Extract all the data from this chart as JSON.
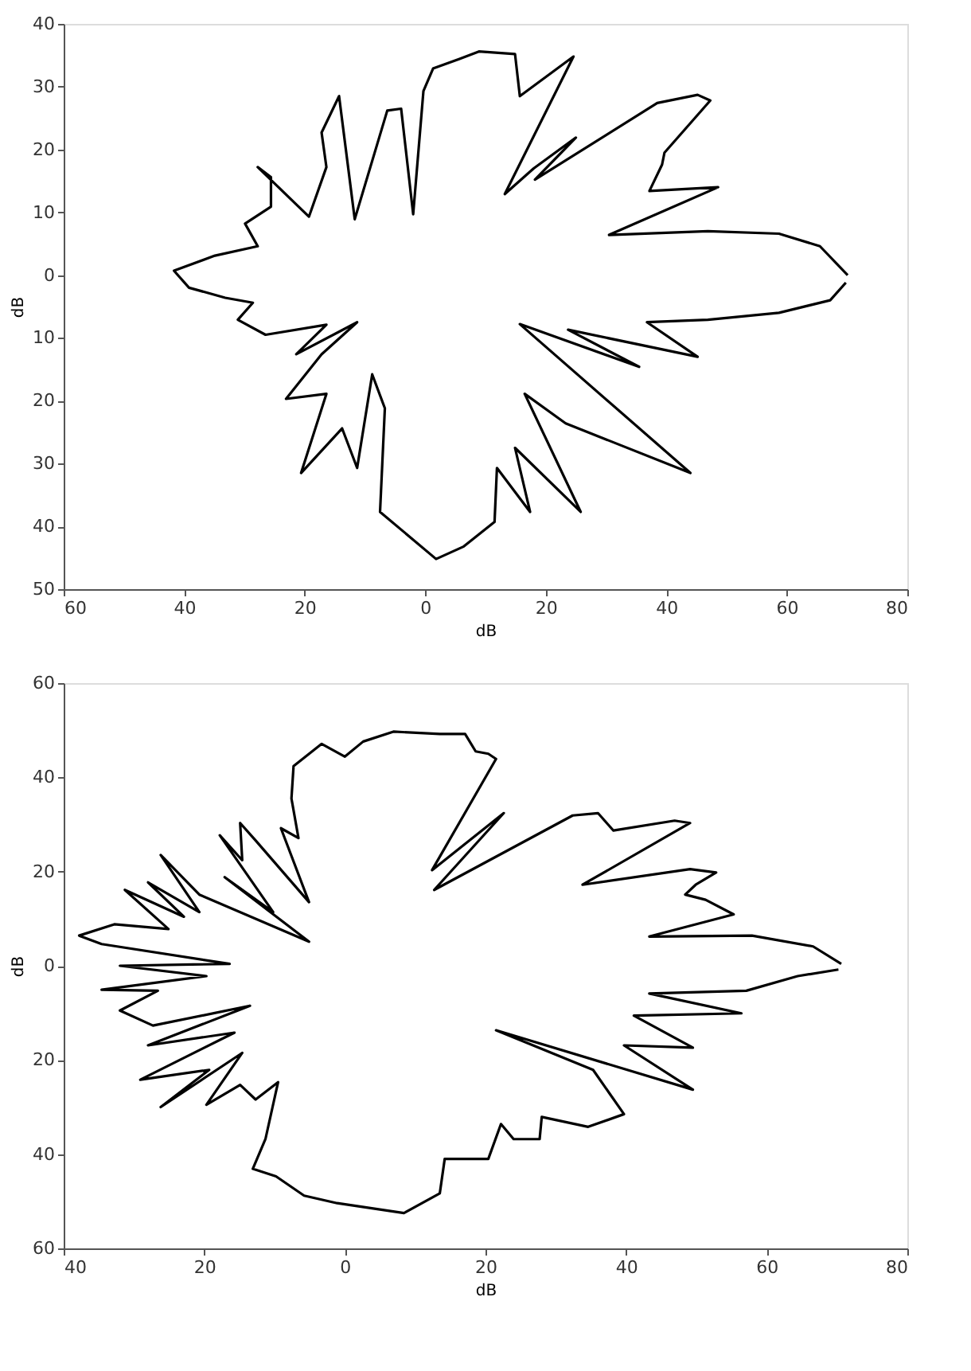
{
  "chart_data": [
    {
      "type": "line",
      "xlabel": "dB",
      "ylabel": "dB",
      "xlim": [
        -60,
        80
      ],
      "ylim": [
        -50,
        40
      ],
      "xticks": [
        {
          "value": -60,
          "label": "60"
        },
        {
          "value": -40,
          "label": "40"
        },
        {
          "value": -20,
          "label": "20"
        },
        0,
        20,
        40,
        60,
        80
      ],
      "yticks": [
        {
          "value": -50,
          "label": "50"
        },
        {
          "value": -40,
          "label": "40"
        },
        {
          "value": -30,
          "label": "30"
        },
        {
          "value": -20,
          "label": "20"
        },
        {
          "value": -10,
          "label": "10"
        },
        0,
        10,
        20,
        30,
        40
      ],
      "series": [
        {
          "color": "#000000",
          "x": [
            70.1,
            65.5,
            58.7,
            46.9,
            30.5,
            48.6,
            37.2,
            39.3,
            39.7,
            47.3,
            45.2,
            38.5,
            18.2,
            25.0,
            18.0,
            13.2,
            24.6,
            15.7,
            14.9,
            8.9,
            5.6,
            1.3,
            -0.3,
            -2.0,
            -4.0,
            -6.3,
            -11.7,
            -14.3,
            -17.2,
            -16.4,
            -19.3,
            -27.8,
            -25.6,
            -25.6,
            -29.9,
            -27.8,
            -34.9,
            -41.7,
            -39.2,
            -33.2,
            -28.6,
            -31.1,
            -26.5,
            -16.4,
            -21.4,
            -11.3,
            -17.2,
            -23.1,
            -16.4,
            -20.6,
            -13.8,
            -11.3,
            -8.8,
            -6.7,
            -7.5,
            1.8,
            6.4,
            11.5,
            11.9,
            17.4,
            14.9,
            25.8,
            16.5,
            23.3,
            44.0,
            15.7,
            35.5,
            23.7,
            45.2,
            36.8,
            46.9,
            58.7,
            67.2,
            69.8
          ],
          "values": [
            0,
            4.6,
            6.6,
            7.0,
            6.4,
            14.0,
            13.4,
            17.6,
            19.5,
            27.8,
            28.7,
            27.4,
            15.2,
            21.9,
            17.0,
            12.9,
            34.8,
            28.5,
            35.2,
            35.6,
            34.4,
            32.9,
            29.3,
            9.7,
            26.5,
            26.2,
            8.9,
            28.5,
            22.7,
            17.2,
            9.3,
            17.2,
            15.6,
            10.9,
            8.2,
            4.6,
            3.1,
            0.7,
            -2.0,
            -3.6,
            -4.4,
            -7.1,
            -9.5,
            -7.9,
            -12.6,
            -7.5,
            -12.6,
            -19.7,
            -18.9,
            -31.5,
            -24.4,
            -30.7,
            -15.8,
            -21.2,
            -37.7,
            -45.2,
            -43.2,
            -39.3,
            -30.7,
            -37.7,
            -27.5,
            -37.7,
            -18.9,
            -23.6,
            -31.5,
            -7.8,
            -14.6,
            -8.7,
            -13.0,
            -7.5,
            -7.1,
            -6.0,
            -4.0,
            -1.2
          ]
        }
      ]
    },
    {
      "type": "line",
      "xlabel": "dB",
      "ylabel": "dB",
      "xlim": [
        -40,
        80
      ],
      "ylim": [
        -60,
        60
      ],
      "xticks": [
        {
          "value": -40,
          "label": "40"
        },
        {
          "value": -20,
          "label": "20"
        },
        0,
        20,
        40,
        60,
        80
      ],
      "yticks": [
        {
          "value": -60,
          "label": "60"
        },
        {
          "value": -40,
          "label": "40"
        },
        {
          "value": -20,
          "label": "20"
        },
        0,
        20,
        40,
        60
      ],
      "series": [
        {
          "color": "#000000",
          "x": [
            70.6,
            66.6,
            57.9,
            43.3,
            55.3,
            51.3,
            48.4,
            49.9,
            52.8,
            49.1,
            33.8,
            49.1,
            46.9,
            38.2,
            36.0,
            32.4,
            12.7,
            22.6,
            12.4,
            21.5,
            20.4,
            18.6,
            17.1,
            13.5,
            6.9,
            2.6,
            0,
            -3.3,
            -7.3,
            -7.6,
            -6.6,
            -9.1,
            -5.1,
            -12.7,
            -14.9,
            -14.6,
            -17.8,
            -10.2,
            -17.1,
            -5.1,
            -20.7,
            -26.2,
            -20.7,
            -28.0,
            -22.9,
            -31.3,
            -25.1,
            -32.8,
            -37.8,
            -34.6,
            -16.4,
            -32.0,
            -19.7,
            -34.6,
            -26.6,
            -32.0,
            -27.3,
            -13.5,
            -28.0,
            -15.7,
            -29.1,
            -19.3,
            -26.2,
            -14.6,
            -19.7,
            -14.9,
            -12.7,
            -9.5,
            -11.3,
            -13.1,
            -9.8,
            -5.8,
            -1.1,
            8.4,
            13.5,
            14.2,
            20.4,
            22.2,
            24.0,
            27.7,
            28.0,
            34.6,
            39.7,
            35.3,
            21.5,
            49.5,
            39.7,
            49.5,
            41.1,
            56.4,
            43.3,
            57.1,
            64.4,
            70.2
          ],
          "values": [
            0.4,
            4.1,
            6.4,
            6.2,
            10.9,
            14.0,
            15.1,
            17.2,
            19.8,
            20.5,
            17.2,
            30.3,
            30.8,
            28.7,
            32.4,
            31.9,
            16.1,
            32.4,
            20.3,
            43.9,
            45.0,
            45.5,
            49.2,
            49.2,
            49.7,
            47.6,
            44.4,
            47.1,
            42.4,
            35.5,
            27.1,
            29.2,
            13.5,
            26.6,
            30.3,
            22.4,
            27.7,
            11.4,
            18.8,
            5.1,
            15.1,
            23.5,
            11.4,
            17.7,
            10.4,
            16.1,
            7.8,
            8.8,
            6.4,
            4.6,
            0.4,
            0,
            -2.2,
            -5.1,
            -5.3,
            -9.5,
            -12.7,
            -8.5,
            -16.9,
            -14.2,
            -24.2,
            -22.1,
            -30.0,
            -18.5,
            -29.5,
            -25.3,
            -28.4,
            -24.7,
            -36.8,
            -43.1,
            -44.7,
            -48.8,
            -50.4,
            -52.5,
            -48.3,
            -41.0,
            -41.0,
            -33.6,
            -36.8,
            -36.8,
            -32.1,
            -34.2,
            -31.5,
            -22.1,
            -13.7,
            -26.3,
            -16.9,
            -17.4,
            -10.6,
            -10.1,
            -5.9,
            -5.3,
            -2.2,
            -0.8
          ]
        }
      ]
    }
  ]
}
